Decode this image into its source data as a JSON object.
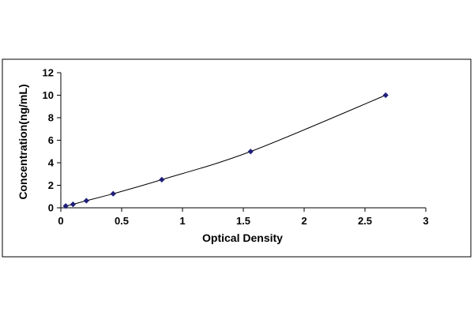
{
  "chart_data": {
    "type": "scatter",
    "title": "",
    "xlabel": "Optical Density",
    "ylabel": "Concentration(ng/mL)",
    "xlim": [
      0,
      3
    ],
    "ylim": [
      0,
      12
    ],
    "x_ticks": [
      0,
      0.5,
      1,
      1.5,
      2,
      2.5,
      3
    ],
    "x_tick_labels": [
      "0",
      "0.5",
      "1",
      "1.5",
      "2",
      "2.5",
      "3"
    ],
    "y_ticks": [
      0,
      2,
      4,
      6,
      8,
      10,
      12
    ],
    "y_tick_labels": [
      "0",
      "2",
      "4",
      "6",
      "8",
      "10",
      "12"
    ],
    "grid": false,
    "legend": "none",
    "series": [
      {
        "x": [
          0.04,
          0.1,
          0.21,
          0.43,
          0.83,
          1.56,
          2.67
        ],
        "y": [
          0.16,
          0.31,
          0.63,
          1.25,
          2.5,
          5,
          10
        ],
        "marker": "diamond",
        "trendline": "smooth",
        "color": "#1f1f7a"
      }
    ],
    "colors": {
      "marker": "#1f1f7a",
      "curve": "#000000",
      "axis": "#000000",
      "frame": "#000000"
    }
  }
}
